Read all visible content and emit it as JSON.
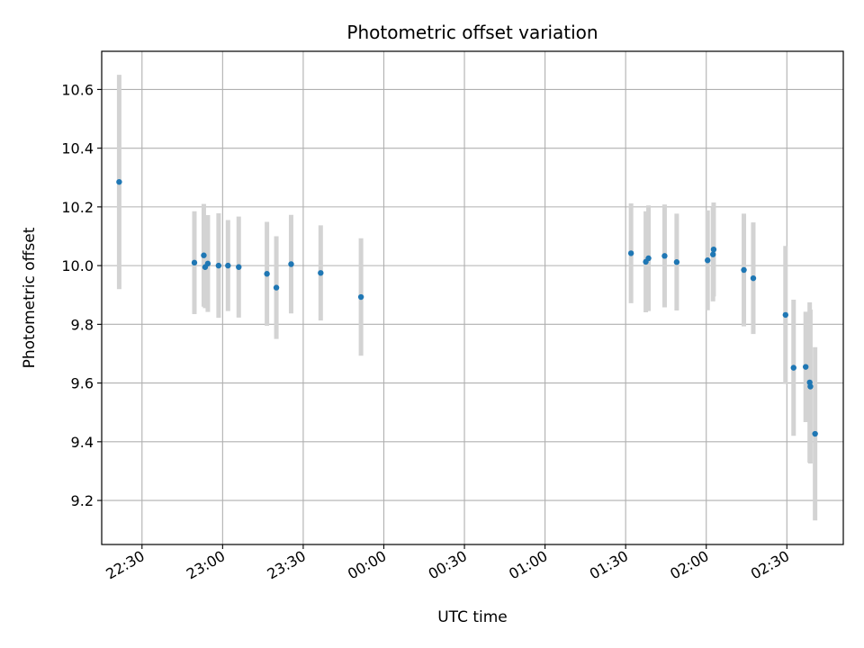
{
  "chart_data": {
    "type": "scatter",
    "title": "Photometric offset variation",
    "xlabel": "UTC time",
    "ylabel": "Photometric offset",
    "x_axis_kind": "time",
    "x_reference_date": "unlabeled",
    "xlim": [
      "22:15",
      "02:51"
    ],
    "ylim": [
      9.05,
      10.73
    ],
    "xticks": [
      "22:30",
      "23:00",
      "23:30",
      "00:00",
      "00:30",
      "01:00",
      "01:30",
      "02:00",
      "02:30"
    ],
    "yticks": [
      9.2,
      9.4,
      9.6,
      9.8,
      10.0,
      10.2,
      10.4,
      10.6
    ],
    "grid": true,
    "colors": {
      "point": "#1f77b4",
      "errorbar": "#d3d3d3",
      "grid": "#b0b0b0"
    },
    "series": [
      {
        "points": [
          {
            "x": "22:21:30",
            "y": 10.285,
            "err": 0.365
          },
          {
            "x": "22:49:30",
            "y": 10.01,
            "err": 0.175
          },
          {
            "x": "22:53:00",
            "y": 10.035,
            "err": 0.175
          },
          {
            "x": "22:53:30",
            "y": 9.995,
            "err": 0.14
          },
          {
            "x": "22:54:30",
            "y": 10.007,
            "err": 0.165
          },
          {
            "x": "22:58:30",
            "y": 10.0,
            "err": 0.178
          },
          {
            "x": "23:02:00",
            "y": 10.0,
            "err": 0.155
          },
          {
            "x": "23:06:00",
            "y": 9.995,
            "err": 0.172
          },
          {
            "x": "23:16:30",
            "y": 9.972,
            "err": 0.177
          },
          {
            "x": "23:20:00",
            "y": 9.925,
            "err": 0.175
          },
          {
            "x": "23:25:30",
            "y": 10.005,
            "err": 0.168
          },
          {
            "x": "23:36:30",
            "y": 9.975,
            "err": 0.162
          },
          {
            "x": "23:51:30",
            "y": 9.893,
            "err": 0.2
          },
          {
            "x": "01:32:00",
            "y": 10.042,
            "err": 0.17
          },
          {
            "x": "01:37:30",
            "y": 10.013,
            "err": 0.172
          },
          {
            "x": "01:38:30",
            "y": 10.025,
            "err": 0.18
          },
          {
            "x": "01:44:30",
            "y": 10.033,
            "err": 0.175
          },
          {
            "x": "01:49:00",
            "y": 10.012,
            "err": 0.165
          },
          {
            "x": "02:00:30",
            "y": 10.018,
            "err": 0.17
          },
          {
            "x": "02:02:30",
            "y": 10.038,
            "err": 0.16
          },
          {
            "x": "02:02:45",
            "y": 10.055,
            "err": 0.16
          },
          {
            "x": "02:14:00",
            "y": 9.985,
            "err": 0.192
          },
          {
            "x": "02:17:30",
            "y": 9.957,
            "err": 0.19
          },
          {
            "x": "02:29:30",
            "y": 9.832,
            "err": 0.235
          },
          {
            "x": "02:32:30",
            "y": 9.652,
            "err": 0.232
          },
          {
            "x": "02:37:00",
            "y": 9.655,
            "err": 0.188
          },
          {
            "x": "02:38:30",
            "y": 9.602,
            "err": 0.273
          },
          {
            "x": "02:38:45",
            "y": 9.588,
            "err": 0.262
          },
          {
            "x": "02:40:30",
            "y": 9.427,
            "err": 0.295
          }
        ]
      }
    ]
  }
}
